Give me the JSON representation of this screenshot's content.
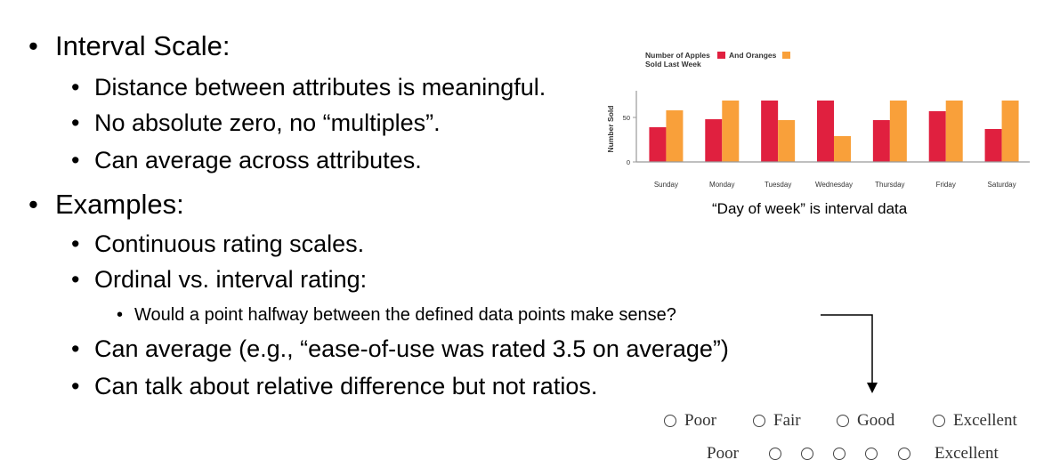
{
  "bullets": [
    {
      "text": "Interval Scale:"
    },
    {
      "text": "Distance between attributes is meaningful."
    },
    {
      "text": "No absolute zero, no “multiples”."
    },
    {
      "text": "Can average across attributes."
    },
    {
      "text": "Examples:"
    },
    {
      "text": "Continuous rating scales."
    },
    {
      "text": "Ordinal vs. interval rating:"
    },
    {
      "text": "Would a point halfway between the  defined data points make sense?"
    },
    {
      "text": "Can average (e.g., “ease-of-use was rated 3.5 on average”)"
    },
    {
      "text": "Can talk about relative difference but not ratios."
    }
  ],
  "bullet_char": "•",
  "chart_data": {
    "type": "bar",
    "title_line1": "Number of Apples",
    "title_and": "And Oranges",
    "title_line2": "Sold Last Week",
    "ylabel": "Number Sold",
    "xlabel": "",
    "ylim": [
      0,
      80
    ],
    "yticks": [
      0,
      50
    ],
    "categories": [
      "Sunday",
      "Monday",
      "Tuesday",
      "Wednesday",
      "Thursday",
      "Friday",
      "Saturday"
    ],
    "series": [
      {
        "name": "Apples",
        "color": "#e0203f",
        "values": [
          39,
          48,
          69,
          69,
          47,
          57,
          37
        ]
      },
      {
        "name": "Oranges",
        "color": "#f9a03a",
        "values": [
          58,
          69,
          47,
          29,
          69,
          69,
          69
        ]
      }
    ],
    "legend_placement": "title",
    "grid": false
  },
  "caption": "“Day of week” is interval data",
  "ordinal_scale": {
    "options": [
      "Poor",
      "Fair",
      "Good",
      "Excellent"
    ]
  },
  "interval_scale": {
    "left_label": "Poor",
    "right_label": "Excellent",
    "points": 5
  }
}
